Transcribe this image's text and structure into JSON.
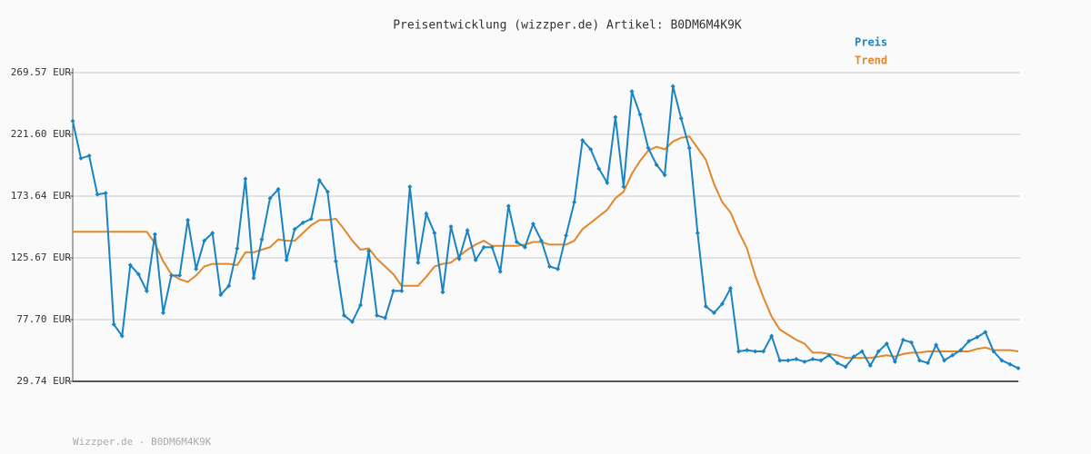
{
  "chart_data": {
    "type": "line",
    "title": "Preisentwicklung (wizzper.de) Artikel: B0DM6M4K9K",
    "footer": "Wizzper.de - B0DM6M4K9K",
    "ylim": [
      29.74,
      269.57
    ],
    "yticks": [
      {
        "value": 29.74,
        "label": "29.74 EUR"
      },
      {
        "value": 77.7,
        "label": "77.70 EUR"
      },
      {
        "value": 125.67,
        "label": "125.67 EUR"
      },
      {
        "value": 173.64,
        "label": "173.64 EUR"
      },
      {
        "value": 221.6,
        "label": "221.60 EUR"
      },
      {
        "value": 269.57,
        "label": "269.57 EUR"
      }
    ],
    "grid": true,
    "legend": "top-right",
    "series": [
      {
        "name": "Preis",
        "color": "#1a84c2",
        "markers": true,
        "values": [
          232,
          203,
          205,
          175,
          176,
          74,
          65,
          120,
          113,
          100,
          144,
          83,
          112,
          112,
          155,
          117,
          139,
          145,
          97,
          104,
          133,
          187,
          110,
          140,
          172,
          179,
          124,
          148,
          153,
          156,
          186,
          177,
          123,
          81,
          76,
          89,
          131,
          81,
          79,
          100,
          100,
          181,
          122,
          160,
          145,
          99,
          150,
          125,
          147,
          124,
          134,
          134,
          115,
          166,
          138,
          134,
          152,
          139,
          119,
          117,
          143,
          169,
          217,
          210,
          195,
          184,
          235,
          181,
          255,
          237,
          211,
          198,
          190,
          259,
          234,
          211,
          145,
          88,
          83,
          90,
          102,
          53,
          54,
          53,
          53,
          65,
          46,
          46,
          47,
          45,
          47,
          46,
          50,
          44,
          41,
          49,
          53,
          42,
          53,
          59,
          45,
          62,
          60,
          46,
          44,
          58,
          46,
          50,
          54,
          61,
          64,
          68,
          53,
          46,
          43,
          40
        ]
      },
      {
        "name": "Trend",
        "color": "#e0882a",
        "markers": false,
        "values": [
          146,
          146,
          146,
          146,
          146,
          146,
          146,
          146,
          146,
          146,
          137,
          123,
          113,
          109,
          107,
          112,
          119,
          121,
          121,
          121,
          120,
          130,
          130,
          132,
          134,
          140,
          139,
          139,
          145,
          151,
          155,
          155,
          156,
          148,
          139,
          132,
          133,
          125,
          119,
          113,
          104,
          104,
          104,
          111,
          119,
          121,
          122,
          127,
          132,
          136,
          139,
          135,
          135,
          135,
          135,
          136,
          138,
          138,
          136,
          136,
          136,
          139,
          148,
          153,
          158,
          163,
          172,
          177,
          191,
          201,
          209,
          212,
          210,
          216,
          219,
          220,
          211,
          202,
          183,
          169,
          161,
          146,
          133,
          112,
          95,
          80,
          70,
          66,
          62,
          59,
          52,
          52,
          51,
          50,
          48,
          48,
          48,
          48,
          49,
          50,
          49,
          51,
          52,
          52,
          53,
          53,
          53,
          53,
          53,
          53,
          55,
          56,
          54,
          54,
          54,
          53
        ]
      }
    ]
  }
}
